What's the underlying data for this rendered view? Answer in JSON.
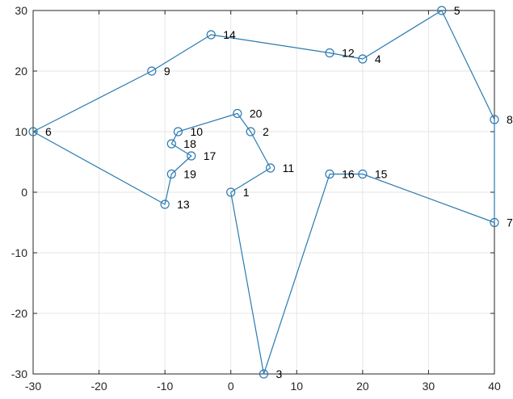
{
  "chart_data": {
    "type": "line",
    "title": "",
    "xlabel": "",
    "ylabel": "",
    "xlim": [
      -30,
      40
    ],
    "ylim": [
      -30,
      30
    ],
    "grid": true,
    "marker": "open-circle",
    "xticks": [
      -30,
      -20,
      -10,
      0,
      10,
      20,
      30,
      40
    ],
    "yticks": [
      -30,
      -20,
      -10,
      0,
      10,
      20,
      30
    ],
    "colors": {
      "line": "#2a7ab0",
      "grid": "#e6e6e6",
      "axis": "#262626"
    },
    "points": [
      {
        "label": "1",
        "x": 0,
        "y": 0
      },
      {
        "label": "2",
        "x": 3,
        "y": 10
      },
      {
        "label": "3",
        "x": 5,
        "y": -30
      },
      {
        "label": "4",
        "x": 20,
        "y": 22
      },
      {
        "label": "5",
        "x": 32,
        "y": 30
      },
      {
        "label": "6",
        "x": -30,
        "y": 10
      },
      {
        "label": "7",
        "x": 40,
        "y": -5
      },
      {
        "label": "8",
        "x": 40,
        "y": 12
      },
      {
        "label": "9",
        "x": -12,
        "y": 20
      },
      {
        "label": "10",
        "x": -8,
        "y": 10
      },
      {
        "label": "11",
        "x": 6,
        "y": 4
      },
      {
        "label": "12",
        "x": 15,
        "y": 23
      },
      {
        "label": "13",
        "x": -10,
        "y": -2
      },
      {
        "label": "14",
        "x": -3,
        "y": 26
      },
      {
        "label": "15",
        "x": 20,
        "y": 3
      },
      {
        "label": "16",
        "x": 15,
        "y": 3
      },
      {
        "label": "17",
        "x": -6,
        "y": 6
      },
      {
        "label": "18",
        "x": -9,
        "y": 8
      },
      {
        "label": "19",
        "x": -9,
        "y": 3
      },
      {
        "label": "20",
        "x": 1,
        "y": 13
      }
    ],
    "path_order": [
      "1",
      "11",
      "2",
      "20",
      "10",
      "18",
      "17",
      "19",
      "13",
      "6",
      "9",
      "14",
      "12",
      "4",
      "5",
      "8",
      "7",
      "15",
      "16",
      "3",
      "1"
    ]
  }
}
